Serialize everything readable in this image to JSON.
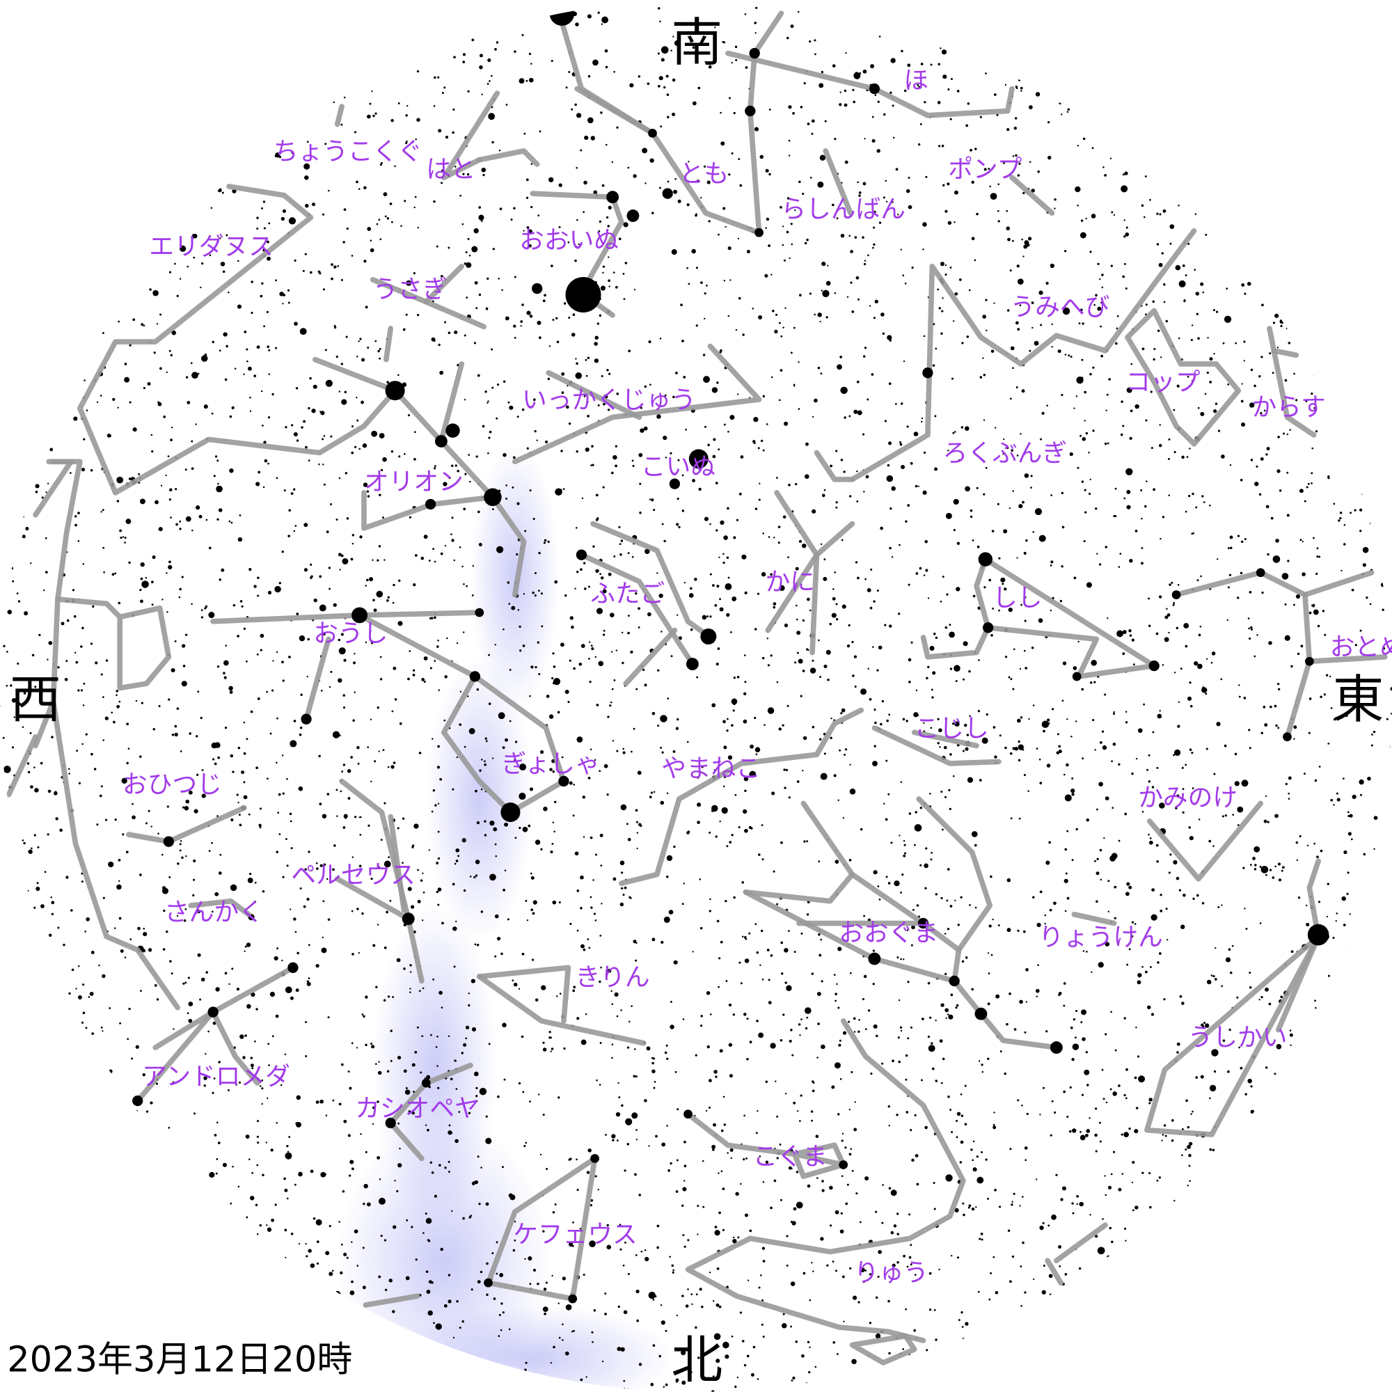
{
  "directions": {
    "south": "南",
    "west": "西",
    "east": "東",
    "north": "北"
  },
  "date": "2023年3月12日20時",
  "constellations": [
    "ほ",
    "ポンプ",
    "らしんばん",
    "うみへび",
    "コップ",
    "からす",
    "ろくぶんぎ",
    "しし",
    "おとめ",
    "こじし",
    "かみのけ",
    "りょうけん",
    "うしかい",
    "おおぐま",
    "こぐま",
    "りゅう",
    "ケフェウス",
    "カシオペヤ",
    "きりん",
    "アンドロメダ",
    "さんかく",
    "ペルセウス",
    "おひつじ",
    "ぎょしゃ",
    "やまねこ",
    "ふたご",
    "かに",
    "こいぬ",
    "オリオン",
    "おうし",
    "いっかくじゅう",
    "うさぎ",
    "おおいぬ",
    "エリダヌス",
    "ちょうこくぐ",
    "はと",
    "とも"
  ]
}
